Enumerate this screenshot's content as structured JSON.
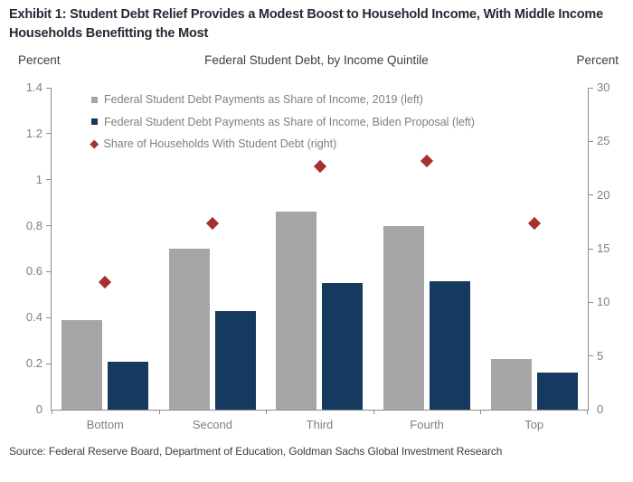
{
  "header": {
    "title_line1": "Exhibit 1: Student Debt Relief Provides a Modest Boost to Household Income, With Middle Income",
    "title_line2": "Households Benefitting the Most"
  },
  "chart": {
    "subtitle": "Federal Student Debt, by Income Quintile",
    "percent_left": "Percent",
    "percent_right": "Percent"
  },
  "source": "Source: Federal Reserve Board, Department of Education, Goldman Sachs Global Investment Research",
  "chart_data": {
    "type": "bar",
    "subtitle": "Federal Student Debt, by Income Quintile",
    "categories": [
      "Bottom",
      "Second",
      "Third",
      "Fourth",
      "Top"
    ],
    "series": [
      {
        "name": "Federal Student Debt Payments as Share of Income, 2019 (left)",
        "type": "bar",
        "axis": "left",
        "marker": "square",
        "color": "#A6A6A6",
        "values": [
          0.39,
          0.7,
          0.86,
          0.8,
          0.22
        ]
      },
      {
        "name": "Federal Student Debt Payments as Share of Income, Biden Proposal (left)",
        "type": "bar",
        "axis": "left",
        "marker": "square",
        "color": "#16395F",
        "values": [
          0.21,
          0.43,
          0.55,
          0.56,
          0.16
        ]
      },
      {
        "name": "Share of Households With Student Debt (right)",
        "type": "scatter",
        "axis": "right",
        "marker": "diamond",
        "color": "#A63031",
        "values": [
          11.9,
          17.4,
          22.7,
          23.2,
          17.4
        ]
      }
    ],
    "left_axis": {
      "label": "Percent",
      "min": 0,
      "max": 1.4,
      "ticks": [
        0,
        0.2,
        0.4,
        0.6,
        0.8,
        1,
        1.2,
        1.4
      ],
      "tick_labels": [
        "0",
        "0.2",
        "0.4",
        "0.6",
        "0.8",
        "1",
        "1.2",
        "1.4"
      ]
    },
    "right_axis": {
      "label": "Percent",
      "min": 0,
      "max": 30,
      "ticks": [
        0,
        5,
        10,
        15,
        20,
        25,
        30
      ],
      "tick_labels": [
        "0",
        "5",
        "10",
        "15",
        "20",
        "25",
        "30"
      ]
    },
    "grid": false,
    "legend_position": "top-left-inside"
  }
}
